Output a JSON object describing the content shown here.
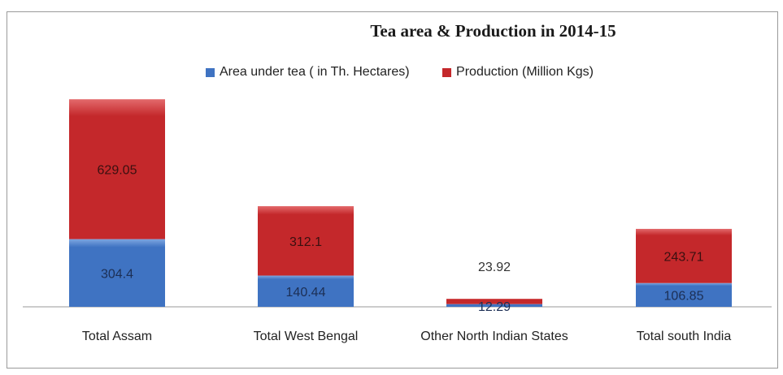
{
  "chart_data": {
    "type": "bar",
    "stacked": true,
    "title": "Tea area & Production in 2014-15",
    "categories": [
      "Total Assam",
      "Total West Bengal",
      "Other North Indian States",
      "Total south India"
    ],
    "series": [
      {
        "name": "Area under tea ( in Th. Hectares)",
        "values": [
          304.4,
          140.44,
          12.29,
          106.85
        ],
        "color": "#3f73c2"
      },
      {
        "name": "Production (Million Kgs)",
        "values": [
          629.05,
          312.1,
          23.92,
          243.71
        ],
        "color": "#c4282b"
      }
    ],
    "value_labels": {
      "area": [
        "304.4",
        "140.44",
        "12.29",
        "106.85"
      ],
      "production": [
        "629.05",
        "312.1",
        "23.92",
        "243.71"
      ]
    },
    "ylim": [
      0,
      940
    ],
    "grid": false,
    "legend_position": "top"
  }
}
